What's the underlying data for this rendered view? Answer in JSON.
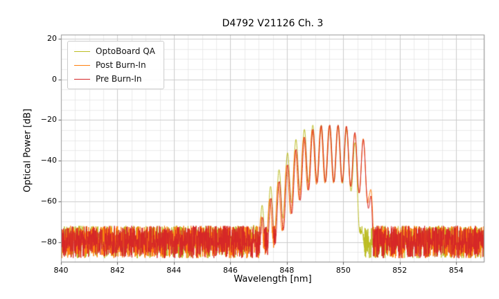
{
  "chart_data": {
    "type": "line",
    "title": "D4792 V21126 Ch. 3",
    "xlabel": "Wavelength [nm]",
    "ylabel": "Optical Power [dB]",
    "xlim": [
      840,
      855
    ],
    "ylim": [
      -90,
      22
    ],
    "xticks": [
      840,
      842,
      844,
      846,
      848,
      850,
      852,
      854
    ],
    "xtick_labels": [
      "840",
      "842",
      "844",
      "846",
      "848",
      "850",
      "852",
      "854"
    ],
    "yticks": [
      20,
      0,
      -20,
      -40,
      -60,
      -80
    ],
    "ytick_labels": [
      "20",
      "0",
      "−20",
      "−40",
      "−60",
      "−80"
    ],
    "grid": {
      "major": true,
      "minor": true,
      "minor_x_step_nm": 0.5,
      "minor_y_step_db": 5
    },
    "legend": {
      "position": "upper left",
      "entries": [
        "OptoBoard QA",
        "Post Burn-In",
        "Pre Burn-In"
      ]
    },
    "noise": {
      "floor_db": -80,
      "amplitude_db": 8
    },
    "series": [
      {
        "name": "OptoBoard QA",
        "color": "#bcbd22",
        "mode_spacing_nm": 0.3,
        "mode_phase_nm": 848.62,
        "ripple_depth_db": 28,
        "seed": 7,
        "envelope": [
          [
            840,
            -81
          ],
          [
            846.45,
            -81
          ],
          [
            846.75,
            -74
          ],
          [
            847.0,
            -66
          ],
          [
            847.3,
            -56
          ],
          [
            847.7,
            -45
          ],
          [
            848.1,
            -34
          ],
          [
            848.5,
            -26
          ],
          [
            848.8,
            -22.5
          ],
          [
            849.9,
            -22.5
          ],
          [
            850.2,
            -25
          ],
          [
            850.45,
            -32
          ],
          [
            850.6,
            -50
          ],
          [
            850.72,
            -81
          ],
          [
            855,
            -81
          ]
        ]
      },
      {
        "name": "Post Burn-In",
        "color": "#ff7f0e",
        "mode_spacing_nm": 0.302,
        "mode_phase_nm": 849.2,
        "ripple_depth_db": 28,
        "seed": 13,
        "envelope": [
          [
            840,
            -81
          ],
          [
            846.7,
            -81
          ],
          [
            847.0,
            -70
          ],
          [
            847.35,
            -60
          ],
          [
            847.75,
            -49
          ],
          [
            848.15,
            -38
          ],
          [
            848.55,
            -29
          ],
          [
            848.95,
            -24
          ],
          [
            849.25,
            -23
          ],
          [
            850.1,
            -23
          ],
          [
            850.45,
            -27
          ],
          [
            850.7,
            -29
          ],
          [
            850.9,
            -34
          ],
          [
            851.02,
            -60
          ],
          [
            851.12,
            -81
          ],
          [
            855,
            -81
          ]
        ]
      },
      {
        "name": "Pre Burn-In",
        "color": "#d62728",
        "mode_spacing_nm": 0.298,
        "mode_phase_nm": 849.22,
        "ripple_depth_db": 28,
        "seed": 21,
        "envelope": [
          [
            840,
            -81
          ],
          [
            846.8,
            -81
          ],
          [
            847.1,
            -69
          ],
          [
            847.45,
            -58
          ],
          [
            847.85,
            -47
          ],
          [
            848.25,
            -36
          ],
          [
            848.65,
            -28
          ],
          [
            849.05,
            -23
          ],
          [
            849.35,
            -22.5
          ],
          [
            850.05,
            -22.5
          ],
          [
            850.4,
            -26
          ],
          [
            850.65,
            -29
          ],
          [
            850.85,
            -31
          ],
          [
            850.98,
            -55
          ],
          [
            851.08,
            -81
          ],
          [
            855,
            -81
          ]
        ]
      }
    ],
    "axes_colors": {
      "frame": "#999999",
      "grid_major": "#c8c8c8",
      "grid_minor": "#e2e2e2",
      "tick": "#333333"
    }
  }
}
